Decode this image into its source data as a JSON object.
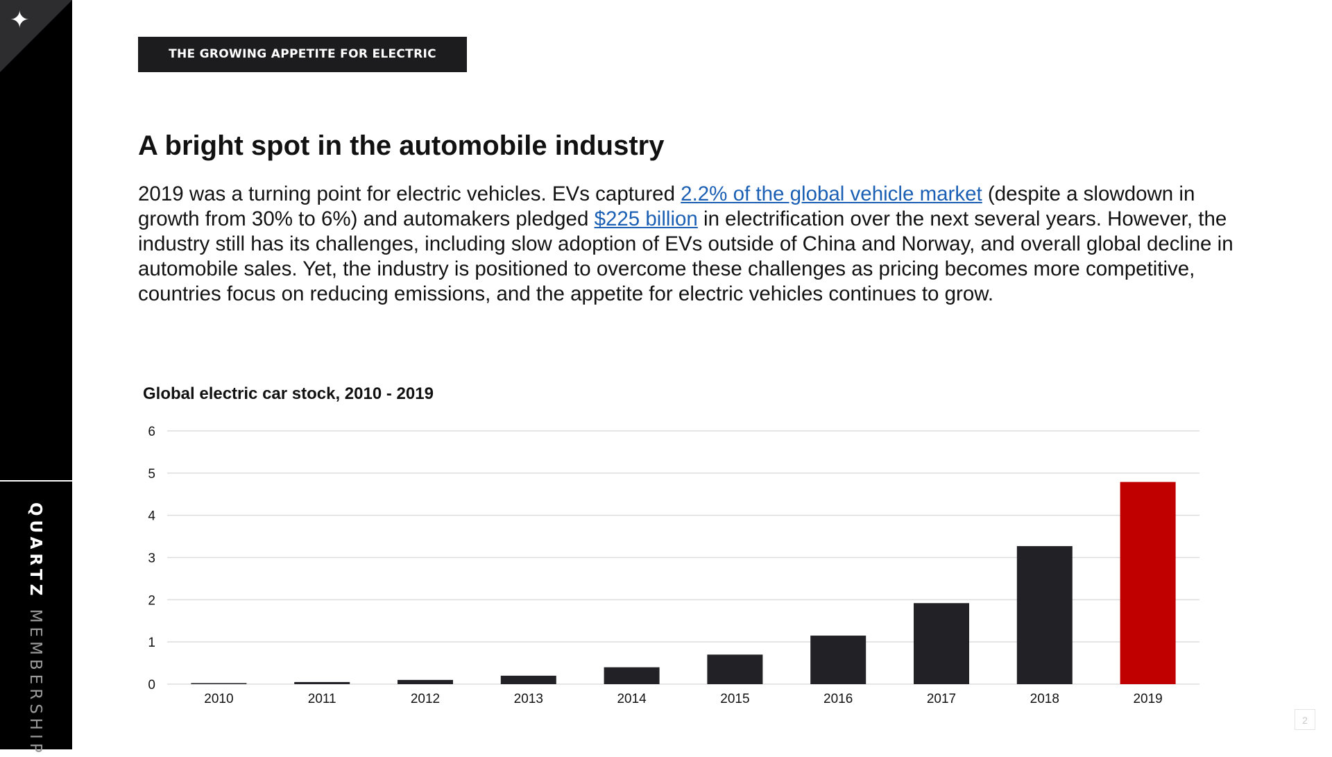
{
  "sidebar": {
    "brand_bold": "QUARTZ",
    "brand_light": "MEMBERSHIP",
    "logo_icon": "sparkle-icon"
  },
  "section_tag": "THE GROWING APPETITE FOR ELECTRIC VEHICLES",
  "headline": "A bright spot in the automobile industry",
  "body": {
    "part1": "2019 was a turning point for electric vehicles. EVs captured ",
    "link1": "2.2% of the global vehicle market",
    "part2": " (despite a slowdown in growth from 30% to 6%) and automakers pledged ",
    "link2": "$225 billion",
    "part3": " in electrification over the next several years. However, the industry still has its challenges, including slow adoption of EVs outside of China and Norway, and overall global decline in automobile sales. Yet, the industry is positioned to overcome these challenges as pricing becomes more competitive, countries focus on reducing emissions, and the appetite for electric vehicles continues to grow."
  },
  "chart_data": {
    "type": "bar",
    "title": "Global electric car stock, 2010 - 2019",
    "xlabel": "",
    "ylabel": "",
    "categories": [
      "2010",
      "2011",
      "2012",
      "2013",
      "2014",
      "2015",
      "2016",
      "2017",
      "2018",
      "2019"
    ],
    "values": [
      0.02,
      0.05,
      0.1,
      0.2,
      0.4,
      0.7,
      1.15,
      1.92,
      3.27,
      4.79
    ],
    "ylim": [
      0,
      6
    ],
    "yticks": [
      0,
      1,
      2,
      3,
      4,
      5,
      6
    ],
    "grid": true,
    "colors": {
      "default": "#222226",
      "highlight": "#c00000",
      "grid": "#dddddd"
    },
    "highlight_index": 9
  },
  "page_number": "2"
}
